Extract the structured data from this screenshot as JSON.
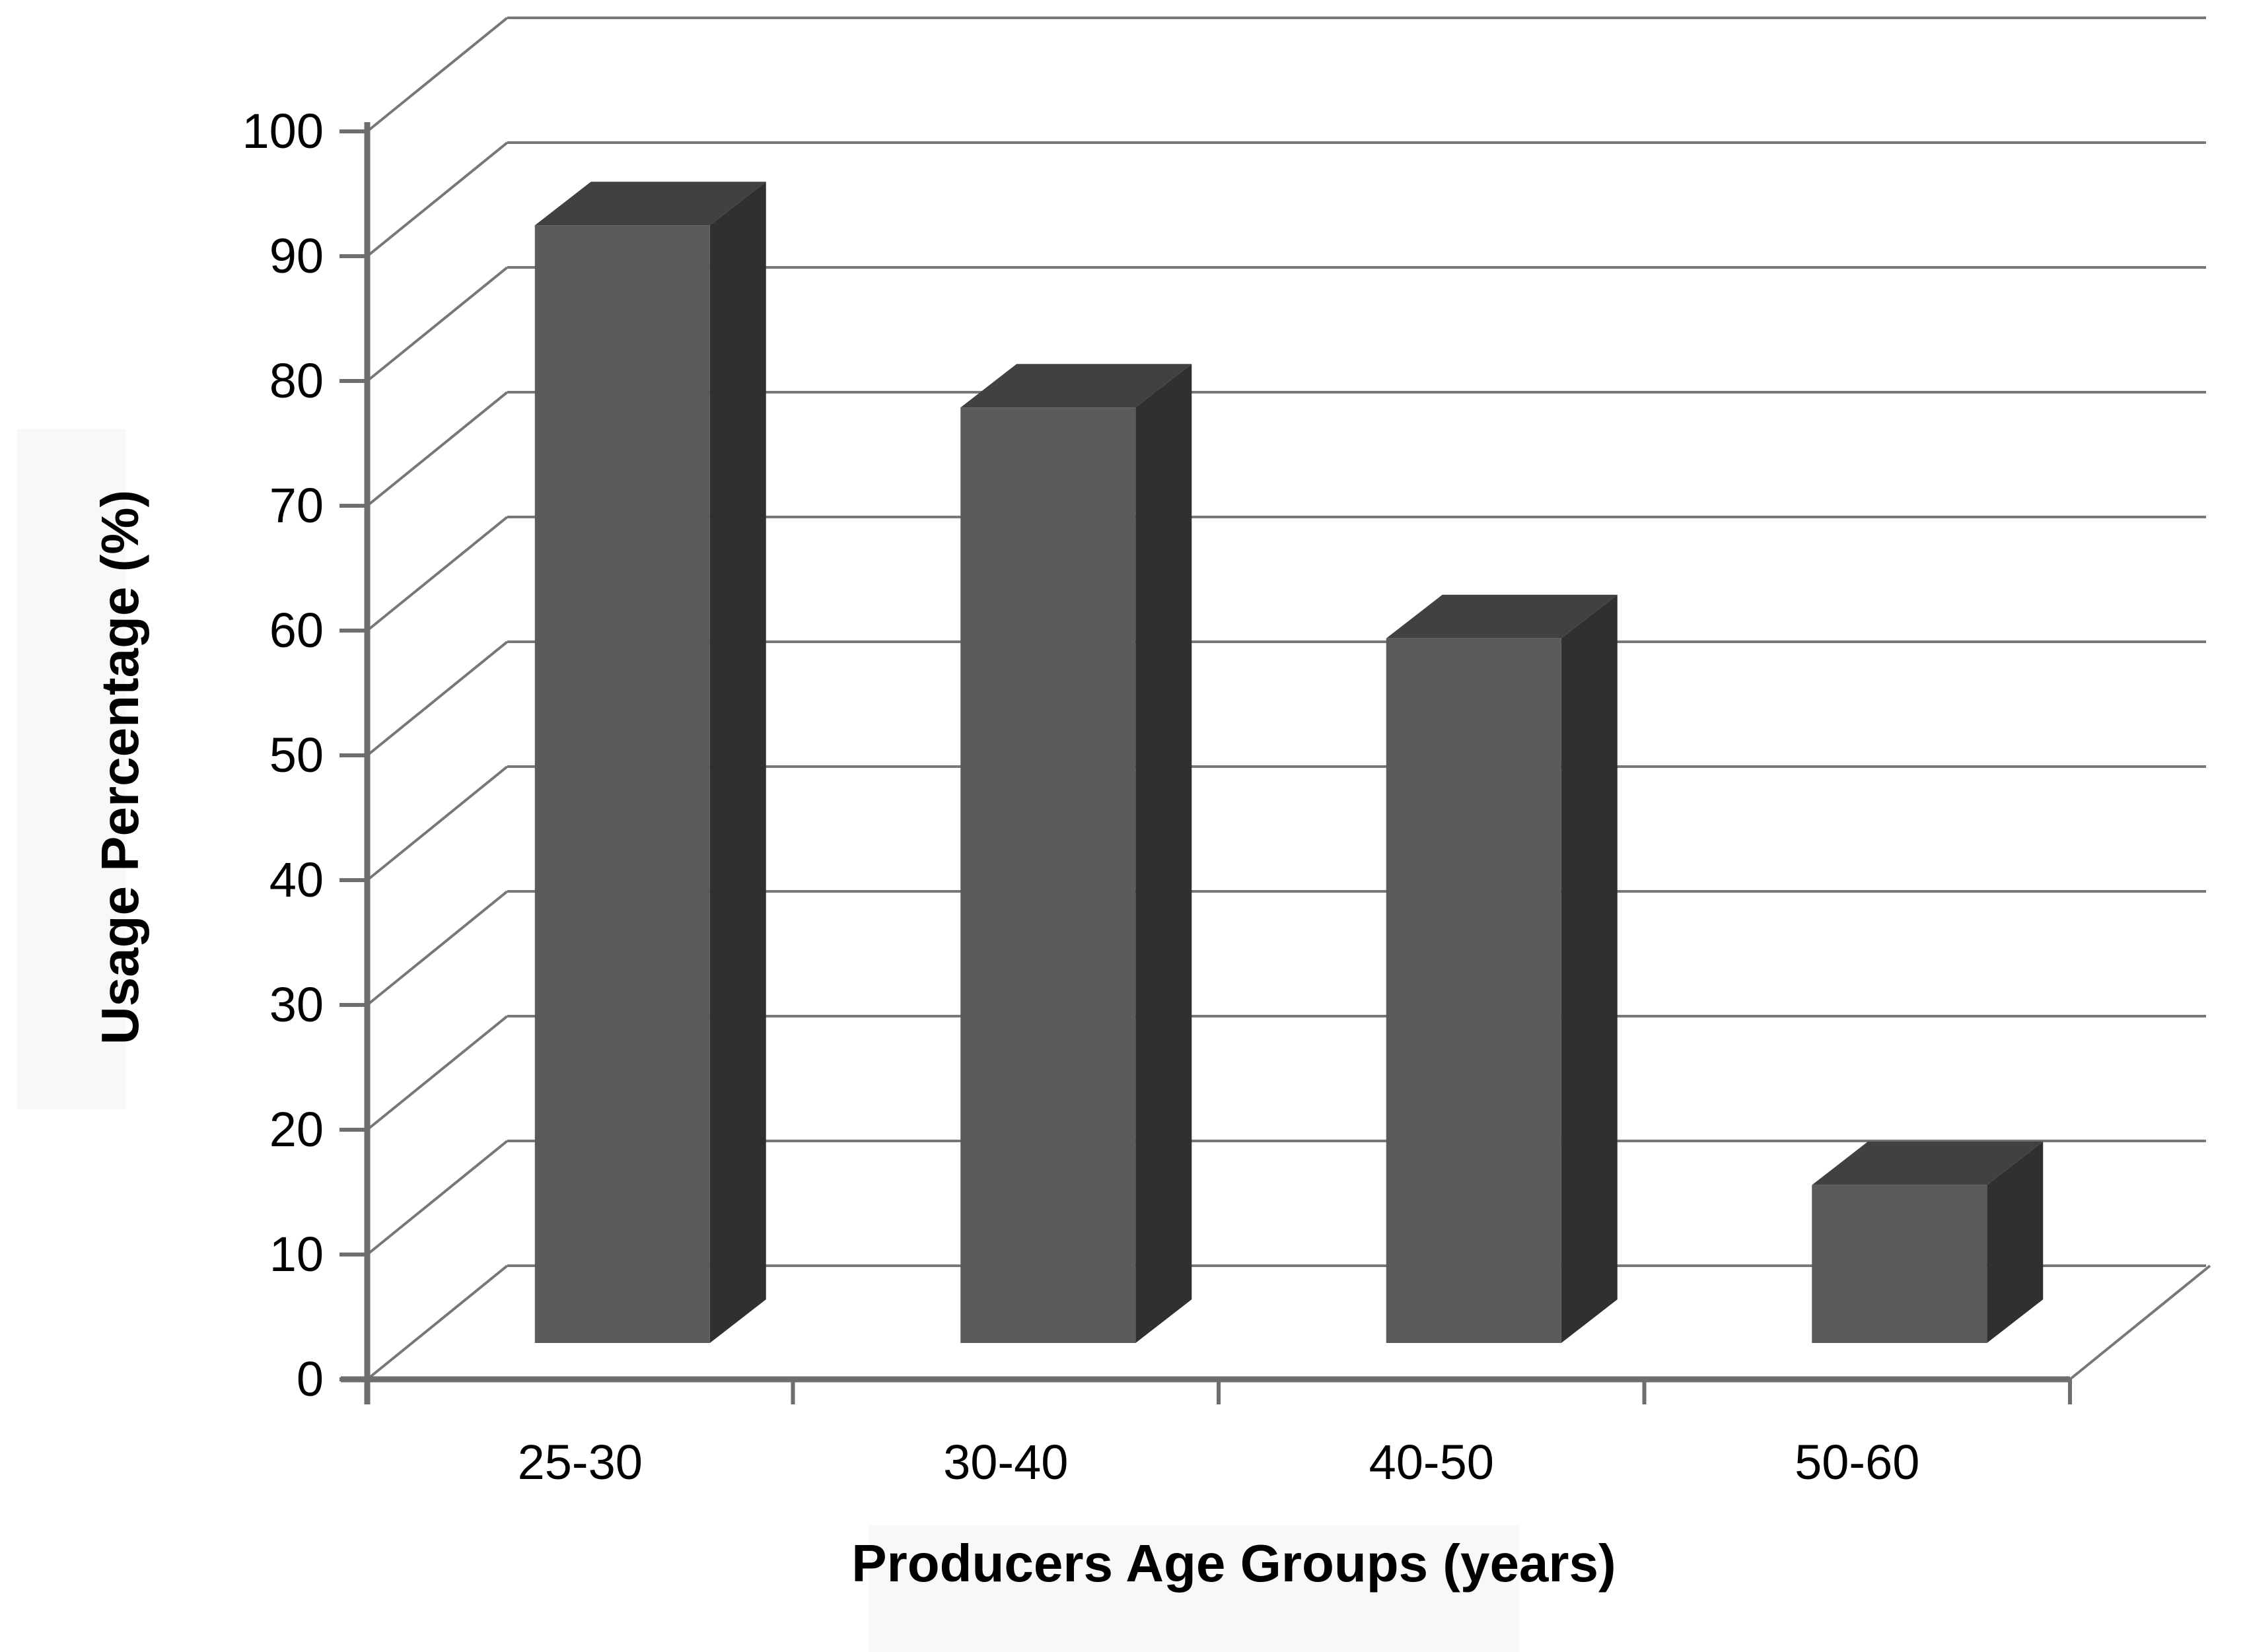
{
  "chart_data": {
    "type": "bar",
    "variant": "3d-column",
    "title": "",
    "xlabel": "Producers Age Groups (years)",
    "ylabel": "Usage Percentage (%)",
    "categories": [
      "25-30",
      "30-40",
      "40-50",
      "50-60"
    ],
    "values": [
      92,
      77,
      58,
      13
    ],
    "ylim": [
      0,
      100
    ],
    "ytick_step": 10,
    "ytick_labels": [
      "0",
      "10",
      "20",
      "30",
      "40",
      "50",
      "60",
      "70",
      "80",
      "90",
      "100"
    ],
    "grid": true,
    "legend": false,
    "colors": {
      "bar_front": "#5b5b5b",
      "bar_top": "#414141",
      "bar_side": "#2f3030",
      "gridline": "#777777",
      "axis": "#6e6e6e",
      "text": "#000000",
      "background": "#ffffff",
      "artifact_band": "#f8f8f8"
    }
  }
}
